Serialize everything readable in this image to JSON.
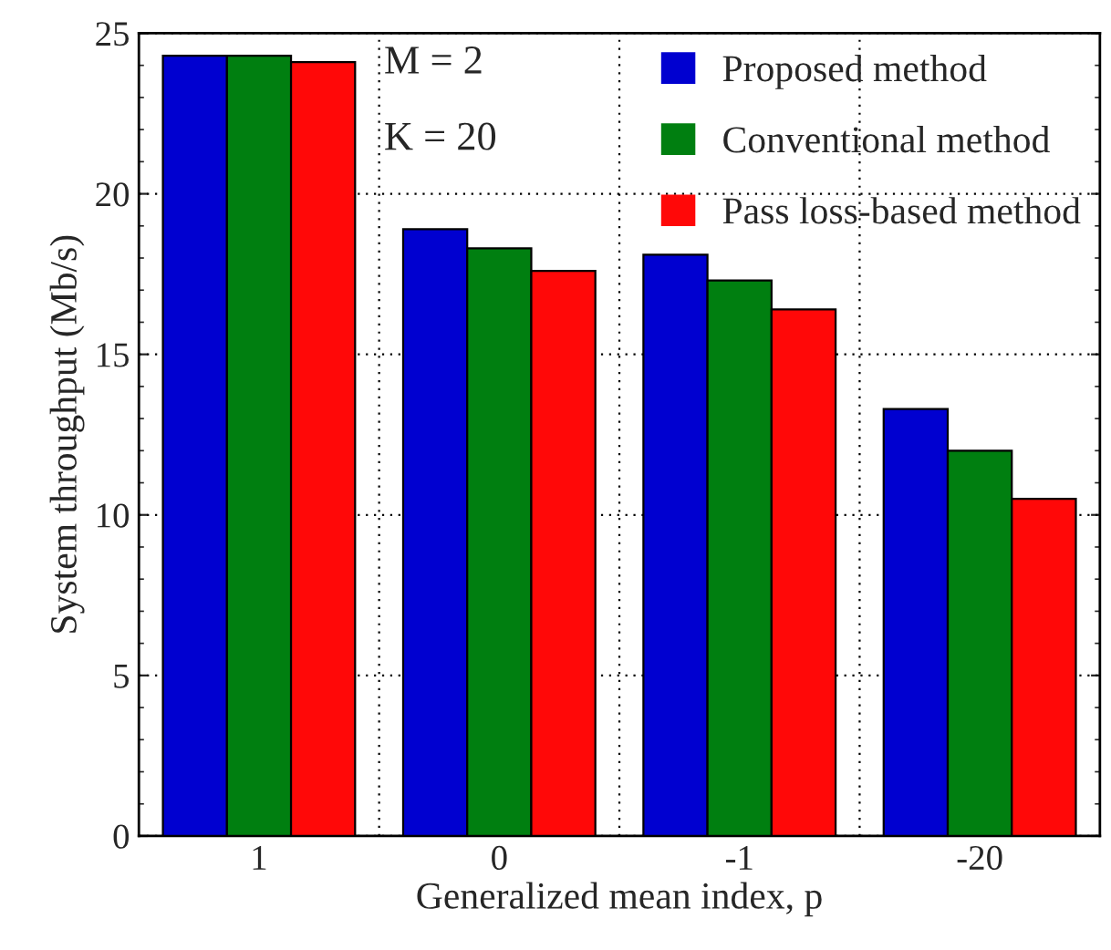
{
  "chart_data": {
    "type": "bar",
    "xlabel": "Generalized mean index, p",
    "ylabel": "System throughput (Mb/s)",
    "categories": [
      "1",
      "0",
      "-1",
      "-20"
    ],
    "series": [
      {
        "name": "Proposed method",
        "color": "#0000d0",
        "values": [
          24.3,
          18.9,
          18.1,
          13.3
        ]
      },
      {
        "name": "Conventional method",
        "color": "#007f10",
        "values": [
          24.3,
          18.3,
          17.3,
          12.0
        ]
      },
      {
        "name": "Pass loss-based method",
        "color": "#ff0808",
        "values": [
          24.1,
          17.6,
          16.4,
          10.5
        ]
      }
    ],
    "ylim": [
      0,
      25
    ],
    "yticks": [
      0,
      5,
      10,
      15,
      20,
      25
    ],
    "grid": true,
    "legend": "top right",
    "annotations": [
      "M = 2",
      "K = 20"
    ]
  }
}
